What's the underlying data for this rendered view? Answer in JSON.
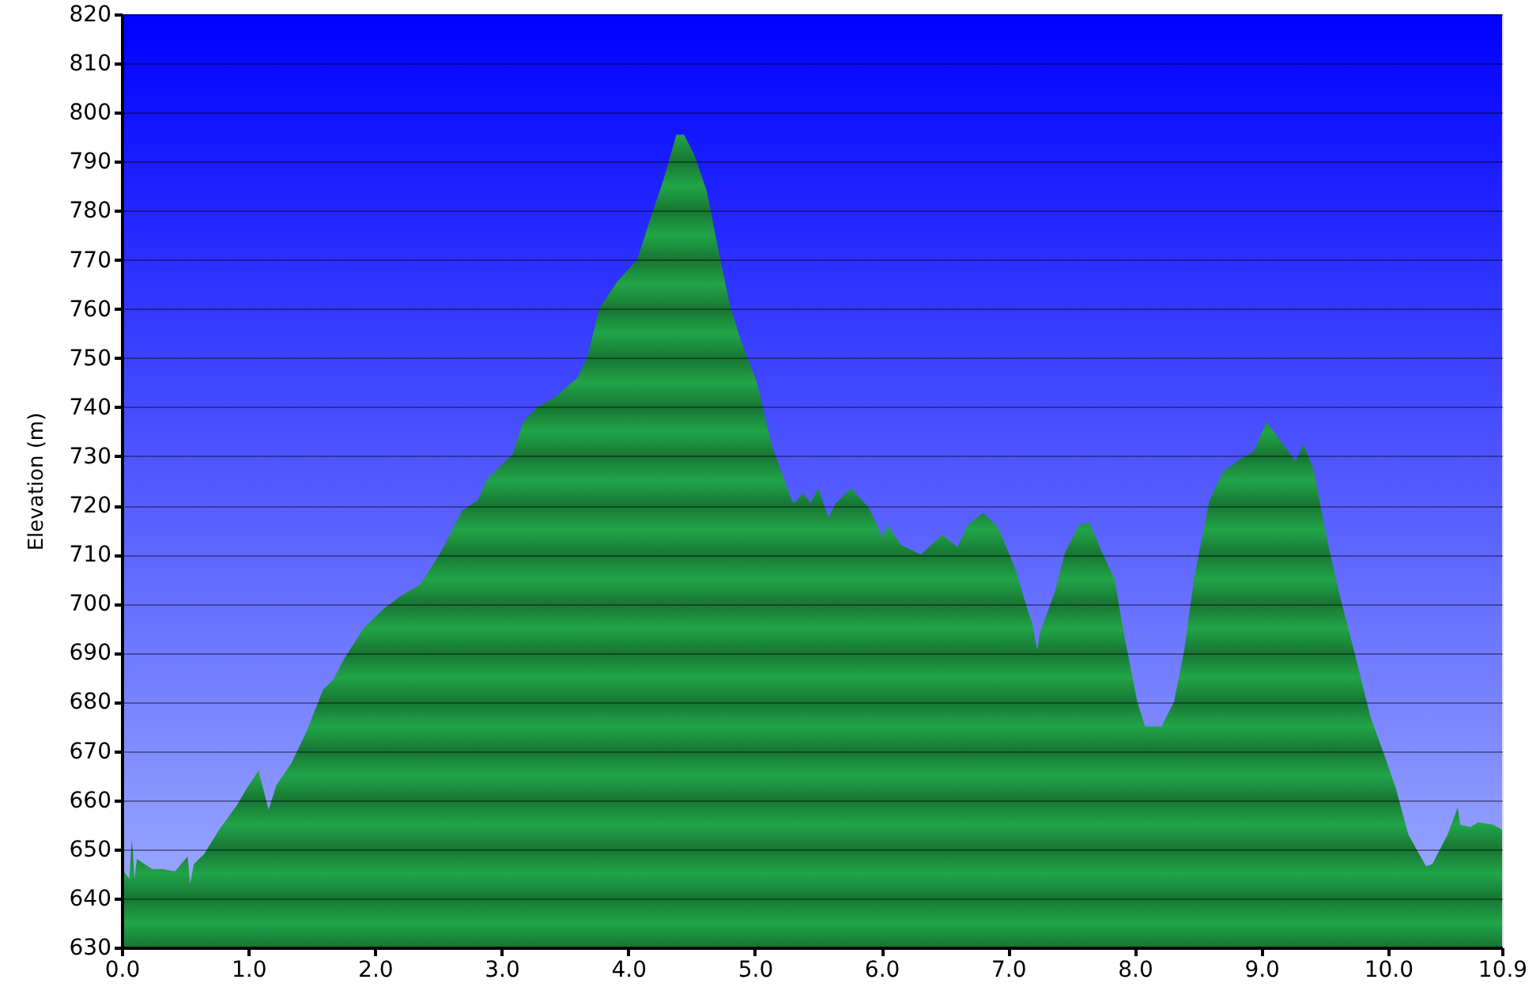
{
  "chart_data": {
    "type": "area",
    "ylabel": "Elevation (m)",
    "x": [
      0.0,
      0.06,
      0.08,
      0.1,
      0.12,
      0.24,
      0.32,
      0.42,
      0.52,
      0.54,
      0.57,
      0.65,
      0.77,
      0.91,
      0.99,
      1.08,
      1.12,
      1.16,
      1.22,
      1.34,
      1.46,
      1.59,
      1.67,
      1.75,
      1.91,
      2.07,
      2.2,
      2.36,
      2.52,
      2.69,
      2.81,
      2.89,
      3.09,
      3.17,
      3.28,
      3.42,
      3.6,
      3.68,
      3.77,
      3.91,
      4.07,
      4.17,
      4.28,
      4.38,
      4.44,
      4.52,
      4.62,
      4.7,
      4.8,
      4.89,
      5.01,
      5.13,
      5.29,
      5.31,
      5.38,
      5.44,
      5.5,
      5.58,
      5.64,
      5.76,
      5.9,
      6.01,
      6.05,
      6.15,
      6.31,
      6.48,
      6.6,
      6.68,
      6.8,
      6.92,
      7.05,
      7.15,
      7.19,
      7.23,
      7.25,
      7.37,
      7.45,
      7.56,
      7.64,
      7.74,
      7.84,
      7.92,
      8.02,
      8.08,
      8.21,
      8.31,
      8.39,
      8.47,
      8.59,
      8.7,
      8.84,
      8.94,
      9.04,
      9.14,
      9.27,
      9.33,
      9.41,
      9.51,
      9.61,
      9.74,
      9.86,
      9.98,
      10.06,
      10.16,
      10.3,
      10.35,
      10.47,
      10.55,
      10.57,
      10.65,
      10.71,
      10.83,
      10.9
    ],
    "series": [
      {
        "color": "#21a548",
        "values": [
          646,
          644,
          652,
          644,
          648,
          646,
          646,
          645.5,
          648.5,
          643,
          647,
          649,
          654,
          659,
          662.5,
          666,
          662,
          658,
          663,
          667.5,
          674,
          682.5,
          684.5,
          688.5,
          695,
          699,
          701.5,
          704,
          710.5,
          719,
          721,
          725.5,
          730.5,
          737,
          740,
          742,
          746,
          750.5,
          760,
          765.5,
          770,
          778,
          786.5,
          795.5,
          795.5,
          791.5,
          784,
          773.5,
          761,
          753.5,
          745.5,
          732.5,
          721,
          720.5,
          722.5,
          720.5,
          723.5,
          717.5,
          720.5,
          723.5,
          719.5,
          713.5,
          716,
          712,
          710,
          714,
          711.5,
          716,
          718.5,
          715.5,
          707.5,
          699,
          696,
          690.5,
          694,
          702.5,
          710.5,
          716,
          716.5,
          710.5,
          705,
          693,
          680,
          675,
          675,
          680,
          690.5,
          705.5,
          721,
          727,
          729.5,
          731,
          737,
          733.5,
          729,
          732.5,
          727.5,
          714,
          702.5,
          689.5,
          677,
          668.5,
          662.5,
          653,
          646.5,
          647,
          653,
          658.5,
          655,
          654.5,
          655.5,
          655,
          654
        ]
      }
    ],
    "xlim": [
      0,
      10.9
    ],
    "xticks": [
      {
        "value": 0,
        "label": "0.0"
      },
      {
        "value": 1,
        "label": "1.0"
      },
      {
        "value": 2,
        "label": "2.0"
      },
      {
        "value": 3,
        "label": "3.0"
      },
      {
        "value": 4,
        "label": "4.0"
      },
      {
        "value": 5,
        "label": "5.0"
      },
      {
        "value": 6,
        "label": "6.0"
      },
      {
        "value": 7,
        "label": "7.0"
      },
      {
        "value": 8,
        "label": "8.0"
      },
      {
        "value": 9,
        "label": "9.0"
      },
      {
        "value": 10,
        "label": "10.0"
      },
      10.9
    ],
    "ylim": [
      630,
      820
    ],
    "yticks": [
      630,
      640,
      650,
      660,
      670,
      680,
      690,
      700,
      710,
      720,
      730,
      740,
      750,
      760,
      770,
      780,
      790,
      800,
      810,
      820
    ],
    "grid": "y"
  }
}
